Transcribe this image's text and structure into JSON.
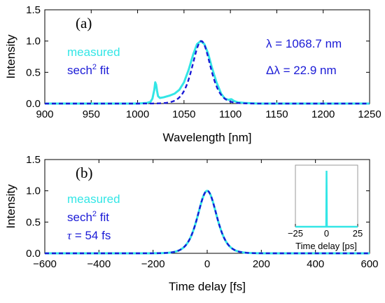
{
  "colors": {
    "measured": "#33e6e6",
    "fit": "#1a1ad6",
    "axis": "#000000"
  },
  "chart_data": [
    {
      "panel_label": "(a)",
      "type": "line",
      "xlabel": "Wavelength [nm]",
      "ylabel": "Intensity",
      "xlim": [
        900,
        1250
      ],
      "ylim": [
        0,
        1.5
      ],
      "xticks": [
        "900",
        "950",
        "1000",
        "1050",
        "1100",
        "1150",
        "1200",
        "1250"
      ],
      "yticks": [
        "0.0",
        "0.5",
        "1.0",
        "1.5"
      ],
      "legend": {
        "measured": "measured",
        "fit_main": "sech",
        "fit_sup": "2",
        "fit_rest": " fit"
      },
      "annotations": {
        "lambda": "λ = 1068.7 nm",
        "dlambda": "Δλ = 22.9 nm"
      },
      "series": [
        {
          "name": "measured",
          "style": "solid",
          "x": [
            900,
            1000,
            1010,
            1014,
            1016,
            1018,
            1019,
            1020,
            1021,
            1022,
            1024,
            1028,
            1035,
            1040,
            1045,
            1050,
            1055,
            1060,
            1064,
            1068,
            1072,
            1076,
            1080,
            1085,
            1090,
            1094,
            1098,
            1101,
            1104,
            1108,
            1115,
            1130,
            1250
          ],
          "y": [
            0.0,
            0.0,
            0.01,
            0.03,
            0.08,
            0.22,
            0.34,
            0.3,
            0.2,
            0.12,
            0.09,
            0.1,
            0.13,
            0.16,
            0.22,
            0.34,
            0.54,
            0.79,
            0.95,
            1.0,
            0.95,
            0.8,
            0.58,
            0.34,
            0.16,
            0.08,
            0.06,
            0.07,
            0.04,
            0.02,
            0.01,
            0.0,
            0.0
          ]
        },
        {
          "name": "sech2 fit",
          "style": "dashed",
          "func": "sech2",
          "center": 1068.7,
          "fwhm": 22.9,
          "peak": 1.0
        }
      ]
    },
    {
      "panel_label": "(b)",
      "type": "line",
      "xlabel": "Time delay [fs]",
      "ylabel": "Intensity",
      "xlim": [
        -600,
        600
      ],
      "ylim": [
        0,
        1.5
      ],
      "xticks": [
        "−600",
        "−400",
        "−200",
        "0",
        "200",
        "400",
        "600"
      ],
      "yticks": [
        "0.0",
        "0.5",
        "1.0",
        "1.5"
      ],
      "legend": {
        "measured": "measured",
        "fit_main": "sech",
        "fit_sup": "2",
        "fit_rest": " fit"
      },
      "annotations": {
        "tau_symbol": "τ",
        "tau_value": " = 54 fs"
      },
      "series": [
        {
          "name": "measured",
          "style": "solid",
          "func": "sech2",
          "center": 0,
          "fwhm": 83,
          "peak": 1.0
        },
        {
          "name": "sech2 fit",
          "style": "dashed",
          "func": "sech2",
          "center": 0,
          "fwhm": 83,
          "peak": 1.0
        }
      ],
      "inset": {
        "type": "line",
        "xlabel": "Time delay [ps]",
        "xlim": [
          -25,
          25
        ],
        "ylim": [
          0,
          1.1
        ],
        "xticks": [
          "−25",
          "0",
          "25"
        ],
        "series": [
          {
            "name": "measured",
            "x": [
              -25,
              -0.3,
              0,
              0.3,
              25
            ],
            "y": [
              0.0,
              0.0,
              1.0,
              0.0,
              0.0
            ]
          }
        ]
      }
    }
  ]
}
